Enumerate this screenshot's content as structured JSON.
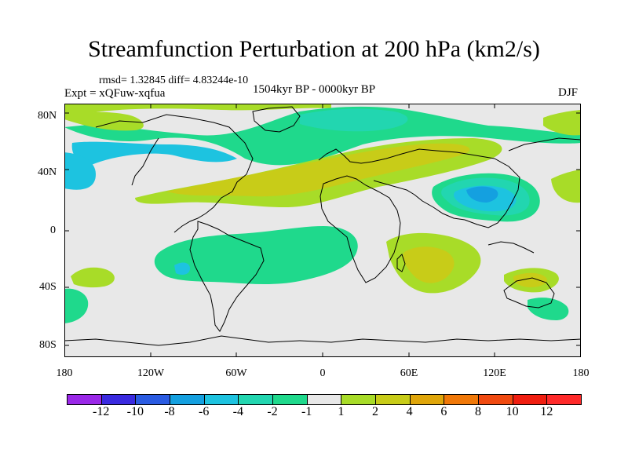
{
  "title": "Streamfunction Perturbation at 200 hPa (km2/s)",
  "stats": "rmsd= 1.32845 diff= 4.83244e-10",
  "experiment": "Expt = xQFuw-xqfua",
  "period": "1504kyr BP - 0000kyr BP",
  "season": "DJF",
  "lat_labels": [
    "80N",
    "40N",
    "0",
    "40S",
    "80S"
  ],
  "lon_labels": [
    "180",
    "120W",
    "60W",
    "0",
    "60E",
    "120E",
    "180"
  ],
  "colorbar": {
    "labels": [
      "-12",
      "-10",
      "-8",
      "-6",
      "-4",
      "-2",
      "-1",
      "1",
      "2",
      "4",
      "6",
      "8",
      "10",
      "12"
    ],
    "colors": [
      "#9a28e8",
      "#3a2ae0",
      "#2a5be2",
      "#14a0e0",
      "#1dc3e0",
      "#22d6b0",
      "#1fd98c",
      "#e8e8e8",
      "#a8dc28",
      "#c8cc18",
      "#e0a60a",
      "#f07808",
      "#f04a10",
      "#f01e10",
      "#ff2a2a"
    ]
  },
  "field_colors": {
    "ocean_background": "#e8e8e8",
    "minus_1": "#1fd98c",
    "minus_2": "#22d6b0",
    "minus_4": "#1dc3e0",
    "minus_6": "#14a0e0",
    "plus_1": "#a8dc28",
    "plus_2": "#c8cc18",
    "plus_4": "#d4b41a"
  }
}
